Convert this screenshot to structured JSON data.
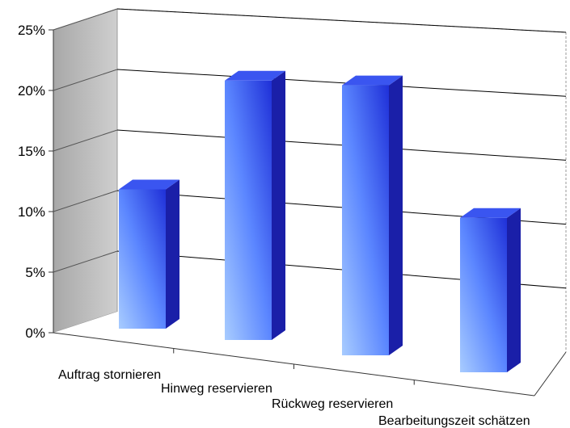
{
  "chart_data": {
    "type": "bar",
    "title": "",
    "xlabel": "",
    "ylabel": "",
    "categories": [
      "Auftrag stornieren",
      "Hinweg reservieren",
      "Rückweg reservieren",
      "Bearbeitungszeit schätzen"
    ],
    "values": [
      12.5,
      22,
      22,
      12.5
    ],
    "ylim": [
      0,
      25
    ],
    "yticks": [
      0,
      5,
      10,
      15,
      20,
      25
    ],
    "ytick_labels": [
      "0%",
      "5%",
      "10%",
      "15%",
      "20%",
      "25%"
    ],
    "grid": true,
    "legend": "none",
    "projection": "3d",
    "colors": {
      "bar_light": "#9cc4ff",
      "bar_mid": "#4f7cff",
      "bar_dark": "#1e2fd0",
      "bar_top": "#3a55f0",
      "bar_side": "#1a1fa8",
      "wall": "#b4b4b4",
      "gridline": "#000000"
    }
  }
}
